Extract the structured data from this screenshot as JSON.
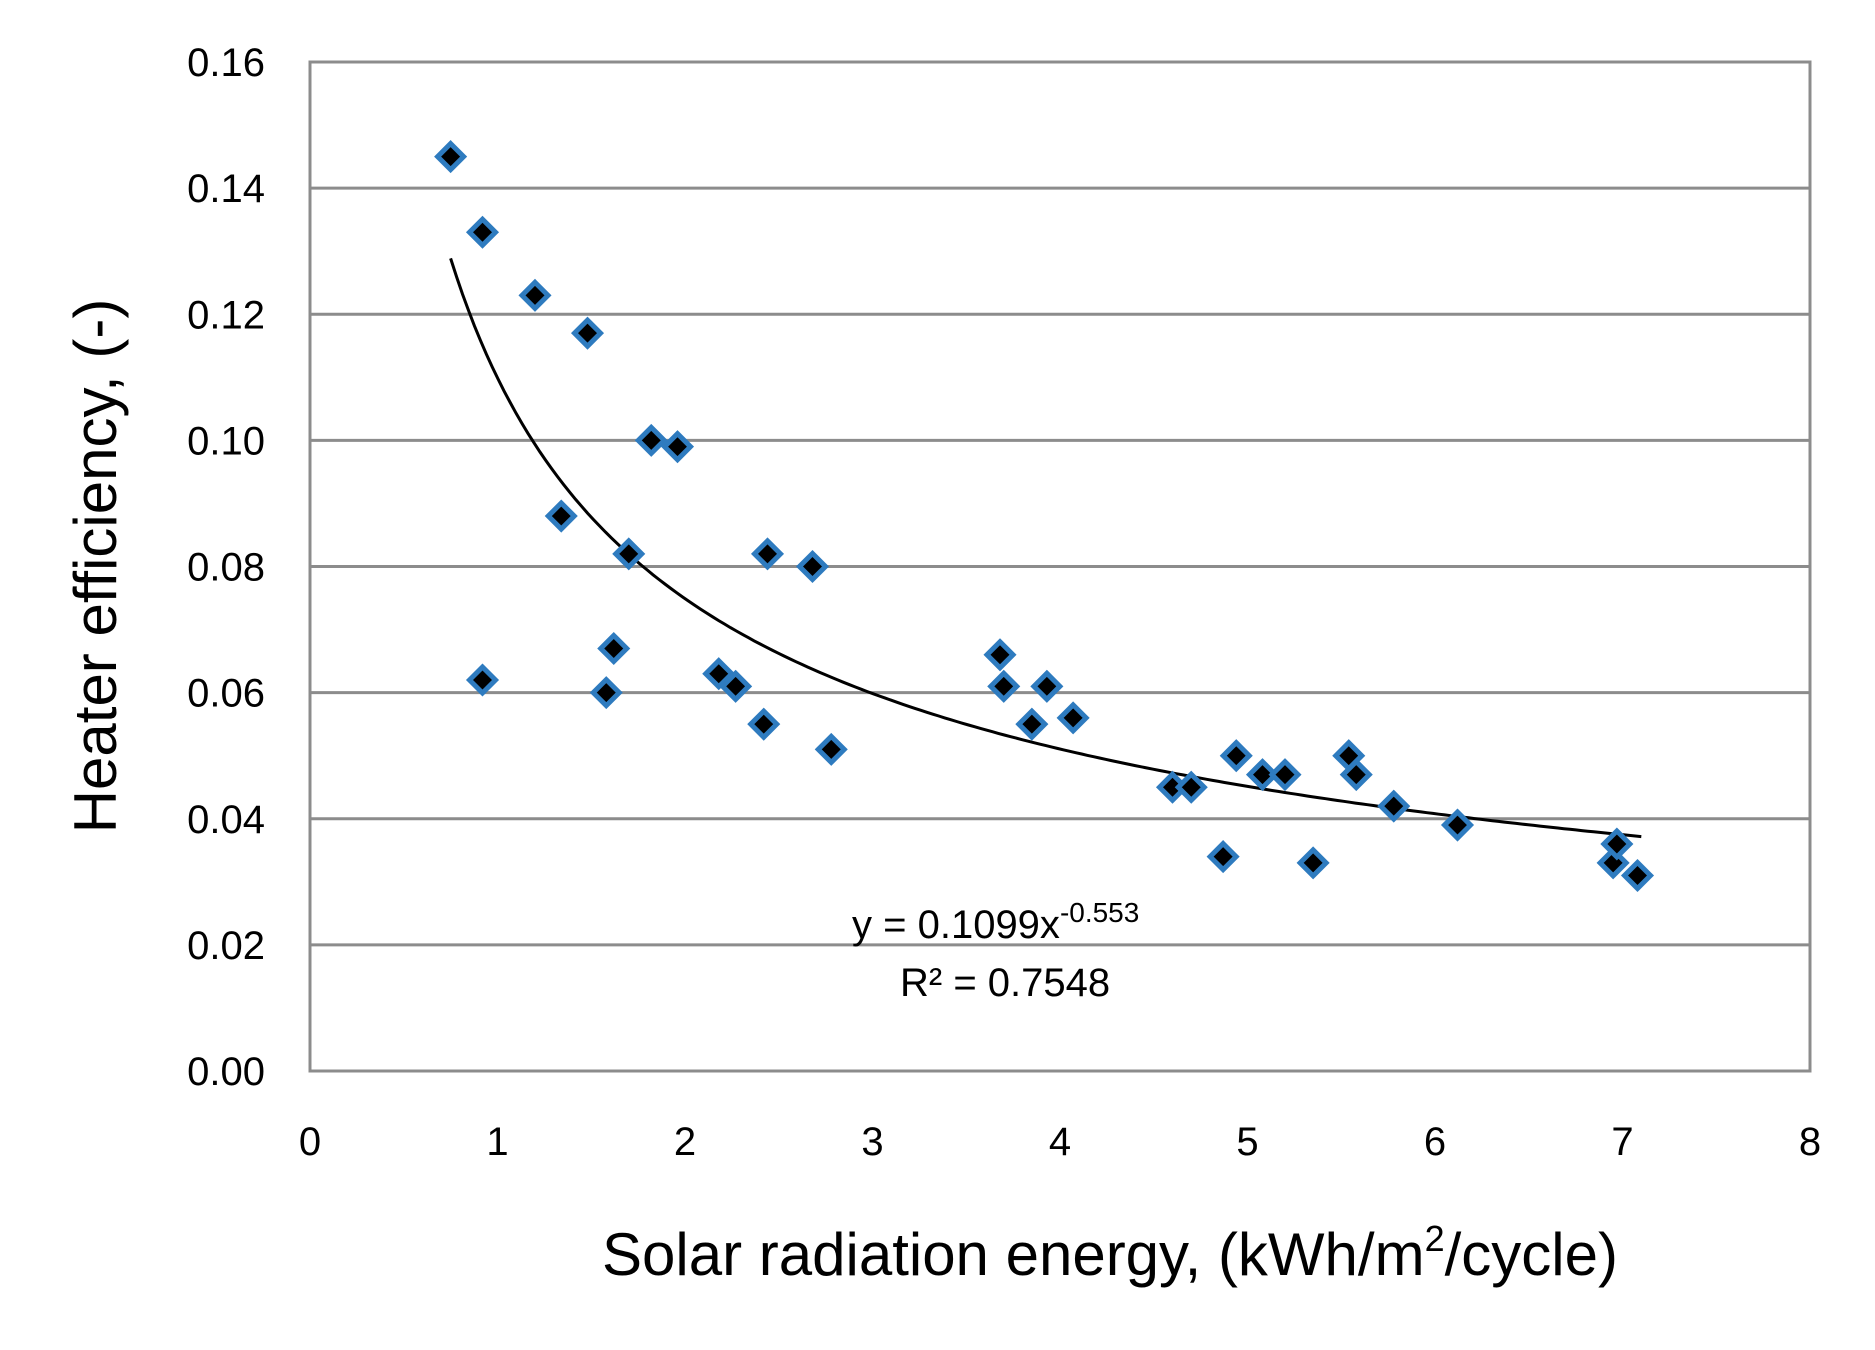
{
  "chart_data": {
    "type": "scatter",
    "xlabel_main": "Solar radiation energy, (kWh/m",
    "xlabel_sup": "2",
    "xlabel_tail": "/cycle)",
    "ylabel": "Heater efficiency, (-)",
    "xlim": [
      0,
      8
    ],
    "ylim": [
      0,
      0.16
    ],
    "x_ticks": [
      "0",
      "1",
      "2",
      "3",
      "4",
      "5",
      "6",
      "7",
      "8"
    ],
    "y_ticks": [
      "0.00",
      "0.02",
      "0.04",
      "0.06",
      "0.08",
      "0.10",
      "0.12",
      "0.14",
      "0.16"
    ],
    "grid": "horizontal",
    "marker_fill": "#000000",
    "marker_edge": "#2e7bbf",
    "points": [
      {
        "x": 0.75,
        "y": 0.145
      },
      {
        "x": 0.92,
        "y": 0.133
      },
      {
        "x": 0.92,
        "y": 0.062
      },
      {
        "x": 1.2,
        "y": 0.123
      },
      {
        "x": 1.34,
        "y": 0.088
      },
      {
        "x": 1.48,
        "y": 0.117
      },
      {
        "x": 1.58,
        "y": 0.06
      },
      {
        "x": 1.62,
        "y": 0.067
      },
      {
        "x": 1.7,
        "y": 0.082
      },
      {
        "x": 1.82,
        "y": 0.1
      },
      {
        "x": 1.96,
        "y": 0.099
      },
      {
        "x": 2.18,
        "y": 0.063
      },
      {
        "x": 2.27,
        "y": 0.061
      },
      {
        "x": 2.42,
        "y": 0.055
      },
      {
        "x": 2.44,
        "y": 0.082
      },
      {
        "x": 2.68,
        "y": 0.08
      },
      {
        "x": 2.78,
        "y": 0.051
      },
      {
        "x": 3.68,
        "y": 0.066
      },
      {
        "x": 3.7,
        "y": 0.061
      },
      {
        "x": 3.85,
        "y": 0.055
      },
      {
        "x": 3.93,
        "y": 0.061
      },
      {
        "x": 4.07,
        "y": 0.056
      },
      {
        "x": 4.6,
        "y": 0.045
      },
      {
        "x": 4.7,
        "y": 0.045
      },
      {
        "x": 4.87,
        "y": 0.034
      },
      {
        "x": 4.94,
        "y": 0.05
      },
      {
        "x": 5.08,
        "y": 0.047
      },
      {
        "x": 5.2,
        "y": 0.047
      },
      {
        "x": 5.35,
        "y": 0.033
      },
      {
        "x": 5.54,
        "y": 0.05
      },
      {
        "x": 5.58,
        "y": 0.047
      },
      {
        "x": 5.78,
        "y": 0.042
      },
      {
        "x": 6.12,
        "y": 0.039
      },
      {
        "x": 6.95,
        "y": 0.033
      },
      {
        "x": 6.97,
        "y": 0.036
      },
      {
        "x": 7.08,
        "y": 0.031
      }
    ],
    "trendline": {
      "type": "power",
      "a": 0.1099,
      "b": -0.553,
      "x_range": [
        0.75,
        7.1
      ],
      "equation_main": "y = 0.1099x",
      "equation_exp": "-0.553",
      "r_squared": "R² = 0.7548"
    }
  }
}
